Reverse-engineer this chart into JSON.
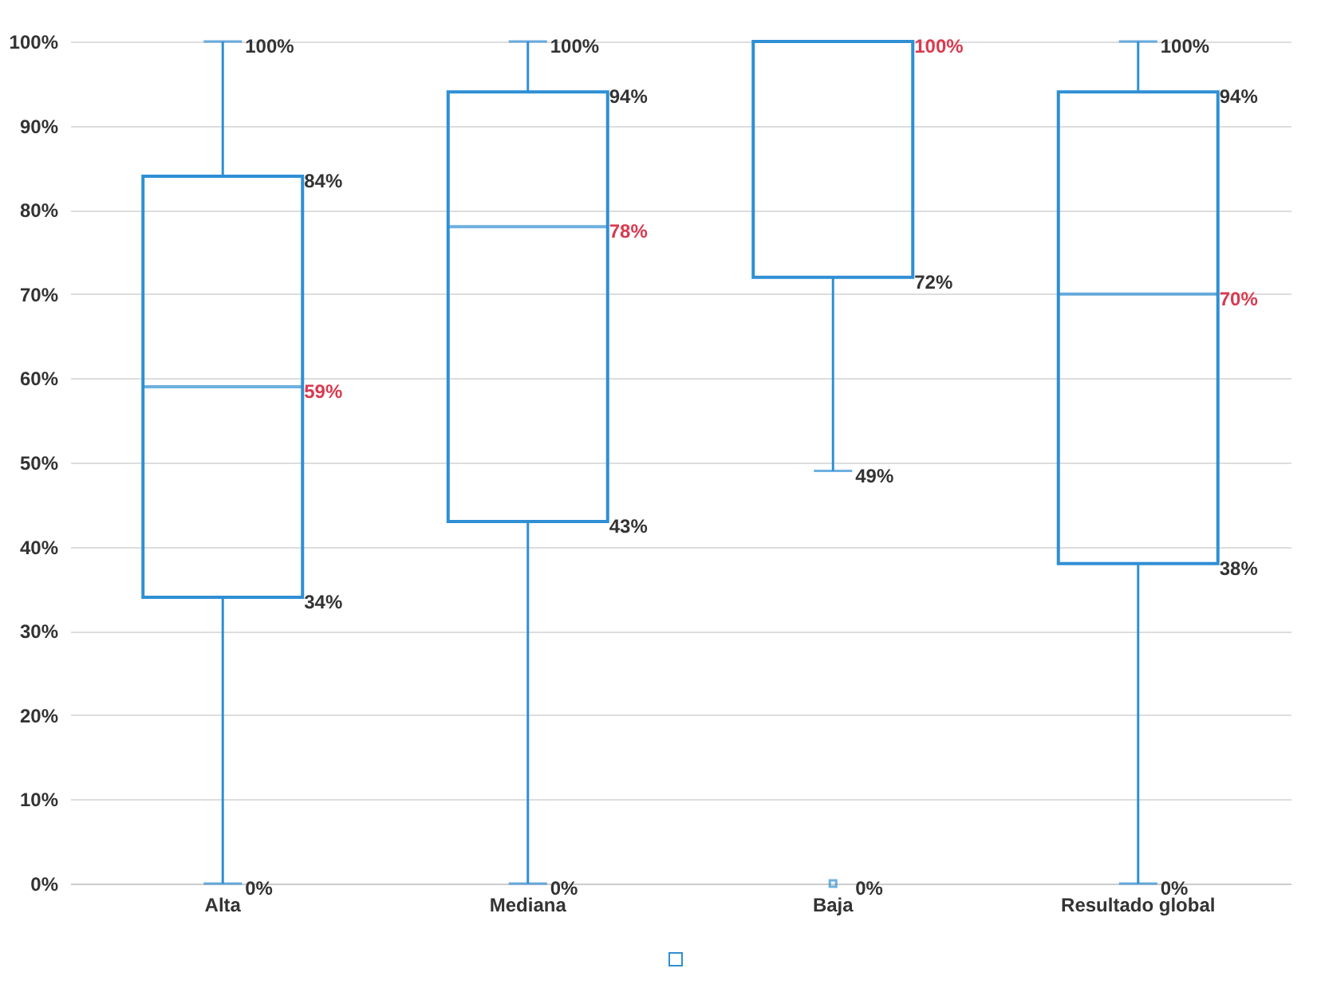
{
  "chart_data": {
    "type": "box",
    "categories": [
      "Alta",
      "Mediana",
      "Baja",
      "Resultado global"
    ],
    "series": [
      {
        "color": "#2f8fd4",
        "boxes": [
          {
            "low": 0,
            "q1": 34,
            "median": 59,
            "q3": 84,
            "high": 100
          },
          {
            "low": 0,
            "q1": 43,
            "median": 78,
            "q3": 94,
            "high": 100
          },
          {
            "low": 49,
            "q1": 72,
            "median": 100,
            "q3": 100,
            "high": 100,
            "outliers": [
              0
            ]
          },
          {
            "low": 0,
            "q1": 38,
            "median": 70,
            "q3": 94,
            "high": 100
          }
        ]
      }
    ],
    "annotations": [
      "100%",
      "84%",
      "59%",
      "34%",
      "0%",
      "100%",
      "94%",
      "78%",
      "43%",
      "0%",
      "100%",
      "72%",
      "49%",
      "0%",
      "100%",
      "94%",
      "70%",
      "38%",
      "0%"
    ],
    "ylim": [
      0,
      100
    ],
    "yticks": [
      {
        "value": 0,
        "label": "0%"
      },
      {
        "value": 10,
        "label": "10%"
      },
      {
        "value": 20,
        "label": "20%"
      },
      {
        "value": 30,
        "label": "30%"
      },
      {
        "value": 40,
        "label": "40%"
      },
      {
        "value": 50,
        "label": "50%"
      },
      {
        "value": 60,
        "label": "60%"
      },
      {
        "value": 70,
        "label": "70%"
      },
      {
        "value": 80,
        "label": "80%"
      },
      {
        "value": 90,
        "label": "90%"
      },
      {
        "value": 100,
        "label": "100%"
      }
    ],
    "grid": "y"
  }
}
